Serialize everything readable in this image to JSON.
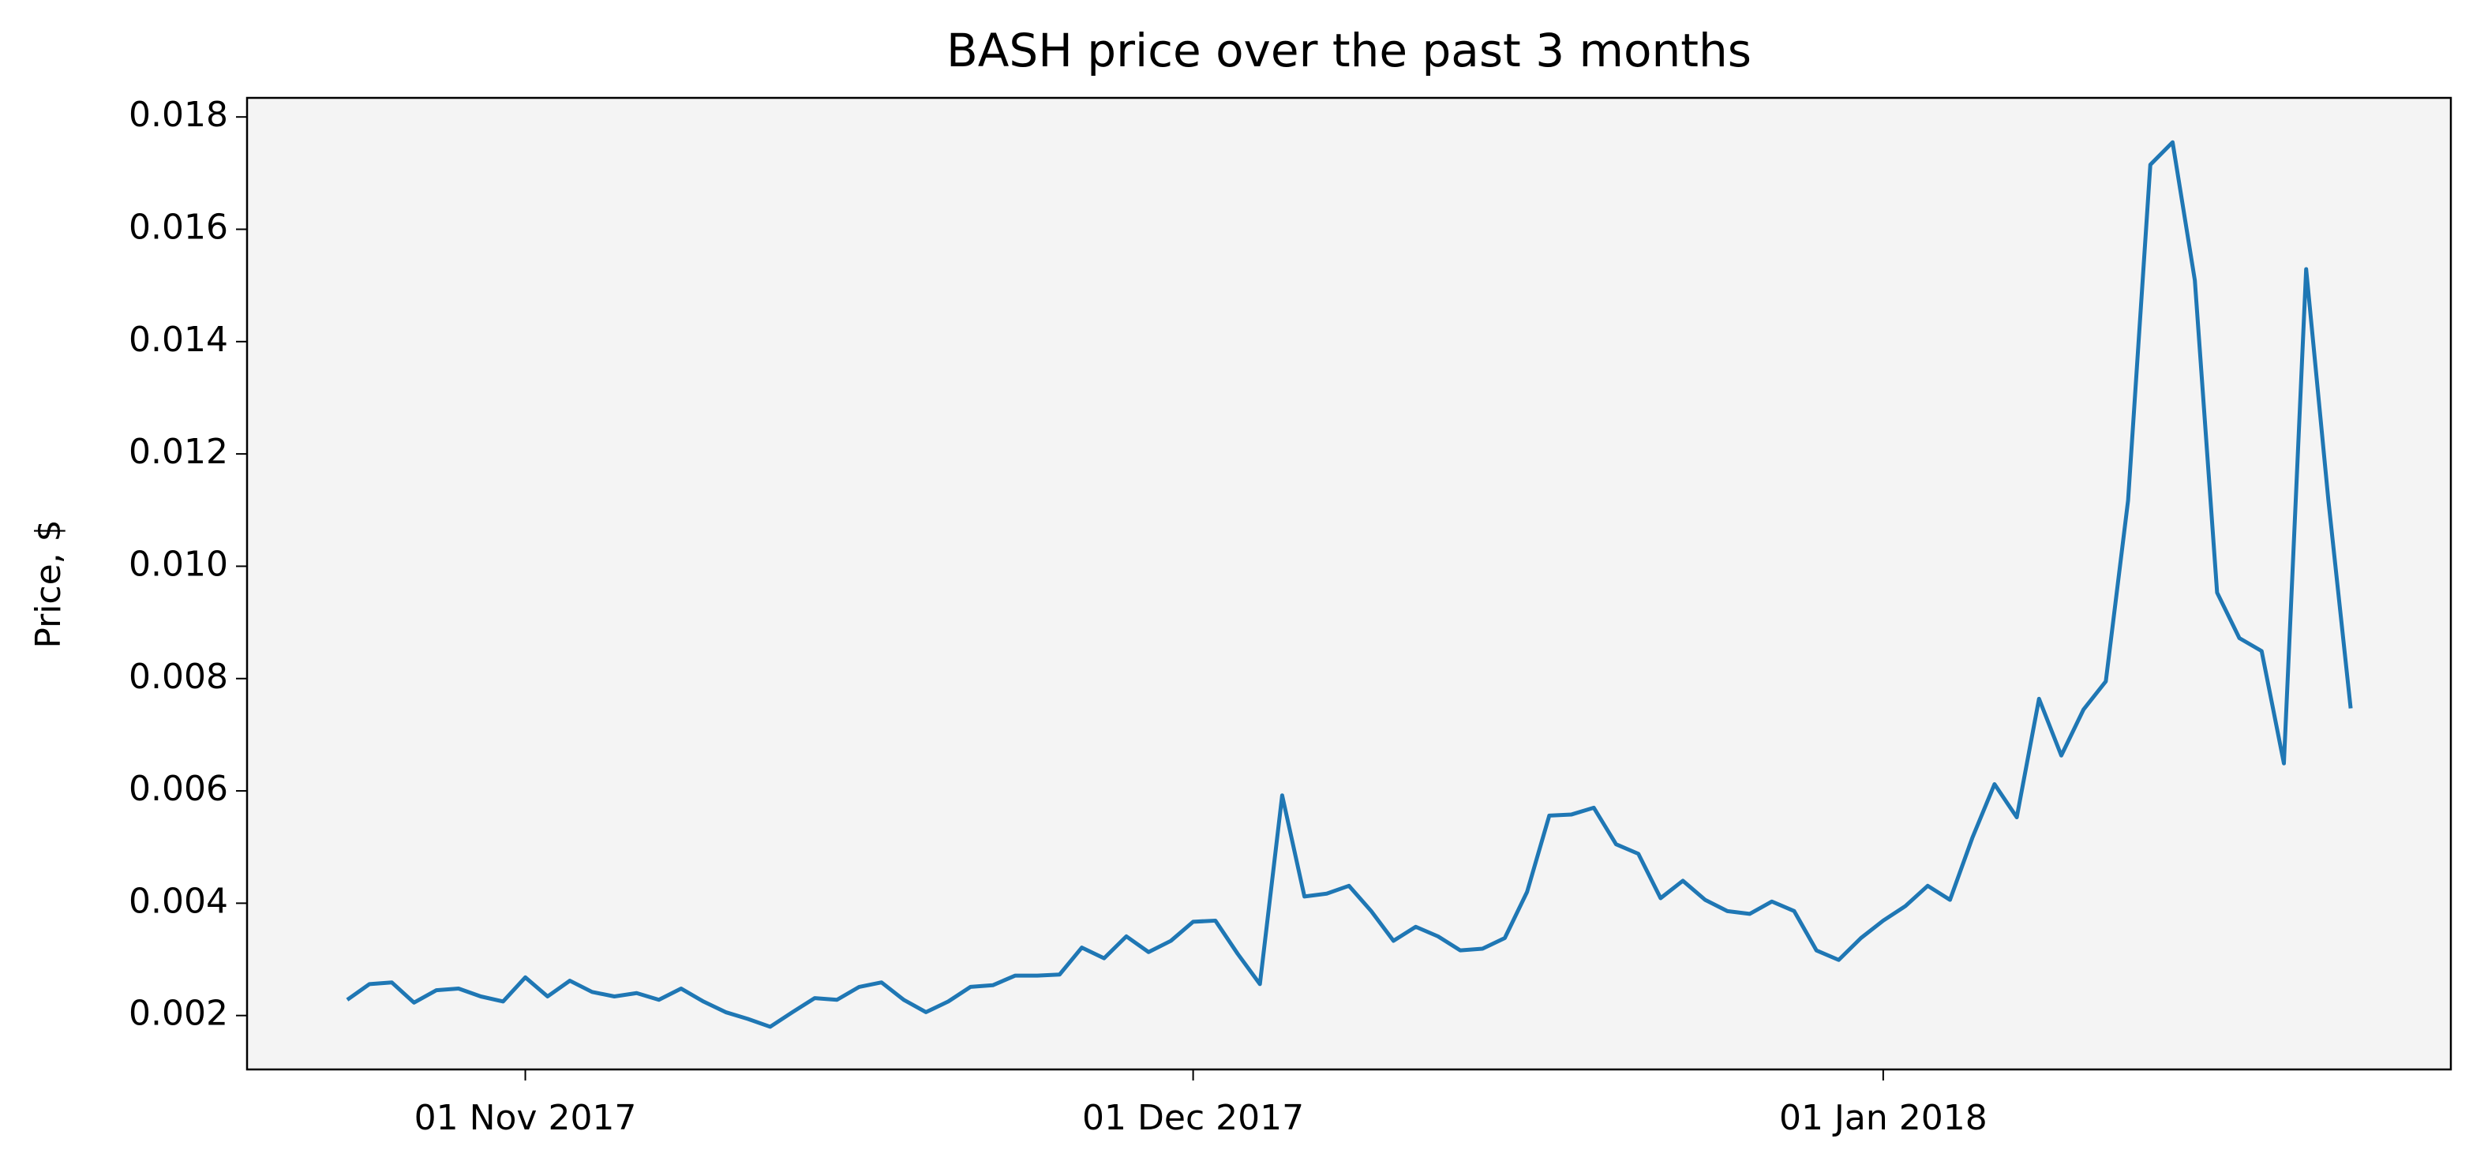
{
  "chart_data": {
    "type": "line",
    "title": "BASH price over the past 3 months",
    "y_label": "Price, $",
    "x": [
      "2017-10-24",
      "2017-10-25",
      "2017-10-26",
      "2017-10-27",
      "2017-10-28",
      "2017-10-29",
      "2017-10-30",
      "2017-10-31",
      "2017-11-01",
      "2017-11-02",
      "2017-11-03",
      "2017-11-04",
      "2017-11-05",
      "2017-11-06",
      "2017-11-07",
      "2017-11-08",
      "2017-11-09",
      "2017-11-10",
      "2017-11-11",
      "2017-11-12",
      "2017-11-13",
      "2017-11-14",
      "2017-11-15",
      "2017-11-16",
      "2017-11-17",
      "2017-11-18",
      "2017-11-19",
      "2017-11-20",
      "2017-11-21",
      "2017-11-22",
      "2017-11-23",
      "2017-11-24",
      "2017-11-25",
      "2017-11-26",
      "2017-11-27",
      "2017-11-28",
      "2017-11-29",
      "2017-11-30",
      "2017-12-01",
      "2017-12-02",
      "2017-12-03",
      "2017-12-04",
      "2017-12-05",
      "2017-12-06",
      "2017-12-07",
      "2017-12-08",
      "2017-12-09",
      "2017-12-10",
      "2017-12-11",
      "2017-12-12",
      "2017-12-13",
      "2017-12-14",
      "2017-12-15",
      "2017-12-16",
      "2017-12-17",
      "2017-12-18",
      "2017-12-19",
      "2017-12-20",
      "2017-12-21",
      "2017-12-22",
      "2017-12-23",
      "2017-12-24",
      "2017-12-25",
      "2017-12-26",
      "2017-12-27",
      "2017-12-28",
      "2017-12-29",
      "2017-12-30",
      "2017-12-31",
      "2018-01-01",
      "2018-01-02",
      "2018-01-03",
      "2018-01-04",
      "2018-01-05",
      "2018-01-06",
      "2018-01-07",
      "2018-01-08",
      "2018-01-09",
      "2018-01-10",
      "2018-01-11",
      "2018-01-12",
      "2018-01-13",
      "2018-01-14",
      "2018-01-15",
      "2018-01-16",
      "2018-01-17",
      "2018-01-18",
      "2018-01-19",
      "2018-01-20",
      "2018-01-21",
      "2018-01-22"
    ],
    "series": [
      {
        "color": "#1f77b4",
        "values": [
          0.00228,
          0.00256,
          0.00259,
          0.00223,
          0.00245,
          0.00248,
          0.00234,
          0.00225,
          0.00268,
          0.00234,
          0.00262,
          0.00242,
          0.00234,
          0.0024,
          0.00228,
          0.00248,
          0.00225,
          0.00206,
          0.00194,
          0.0018,
          0.00206,
          0.00231,
          0.00228,
          0.00251,
          0.00259,
          0.00228,
          0.00206,
          0.00225,
          0.00251,
          0.00254,
          0.00271,
          0.00271,
          0.00273,
          0.00321,
          0.00302,
          0.00341,
          0.00313,
          0.00333,
          0.00367,
          0.00369,
          0.0031,
          0.00256,
          0.00592,
          0.00412,
          0.00417,
          0.00431,
          0.00386,
          0.00333,
          0.00358,
          0.00341,
          0.00316,
          0.00319,
          0.00338,
          0.0042,
          0.00556,
          0.00558,
          0.0057,
          0.00505,
          0.00488,
          0.00409,
          0.0044,
          0.00406,
          0.00386,
          0.00381,
          0.00403,
          0.00386,
          0.00316,
          0.00299,
          0.00338,
          0.00369,
          0.00395,
          0.00431,
          0.00406,
          0.00516,
          0.00612,
          0.00553,
          0.00764,
          0.00663,
          0.00745,
          0.00795,
          0.01117,
          0.01715,
          0.01755,
          0.01509,
          0.00953,
          0.00872,
          0.00849,
          0.00649,
          0.01529,
          0.01117,
          0.00747
        ]
      }
    ],
    "xlim": [
      "2017-10-19T12:00:00Z",
      "2018-01-26T12:00:00Z"
    ],
    "xticks": [
      {
        "value": "2017-11-01",
        "label": "01 Nov 2017"
      },
      {
        "value": "2017-12-01",
        "label": "01 Dec 2017"
      },
      {
        "value": "2018-01-01",
        "label": "01 Jan 2018"
      }
    ],
    "ylim": [
      0.00104,
      0.01834
    ],
    "yticks": [
      0.002,
      0.004,
      0.006,
      0.008,
      {
        "value": 0.01,
        "label": "0.010"
      },
      0.012,
      0.014,
      0.016,
      0.018
    ],
    "grid": false
  }
}
